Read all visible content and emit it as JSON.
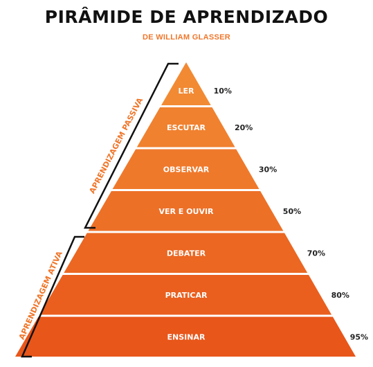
{
  "title": "PIRÂMIDE DE APRENDIZADO",
  "subtitle": "DE WILLIAM GLASSER",
  "colors": {
    "accent": "#f0762a",
    "tier_top": "#f28a33",
    "tier_bottom": "#e8561a",
    "bracket": "#111111",
    "text_dark": "#222222"
  },
  "groups": {
    "passive": "APRENDIZAGEM PASSIVA",
    "active": "APRENDIZAGEM ATIVA"
  },
  "tiers": [
    {
      "label": "LER",
      "percent": "10%"
    },
    {
      "label": "ESCUTAR",
      "percent": "20%"
    },
    {
      "label": "OBSERVAR",
      "percent": "30%"
    },
    {
      "label": "VER E OUVIR",
      "percent": "50%"
    },
    {
      "label": "DEBATER",
      "percent": "70%"
    },
    {
      "label": "PRATICAR",
      "percent": "80%"
    },
    {
      "label": "ENSINAR",
      "percent": "95%"
    }
  ]
}
